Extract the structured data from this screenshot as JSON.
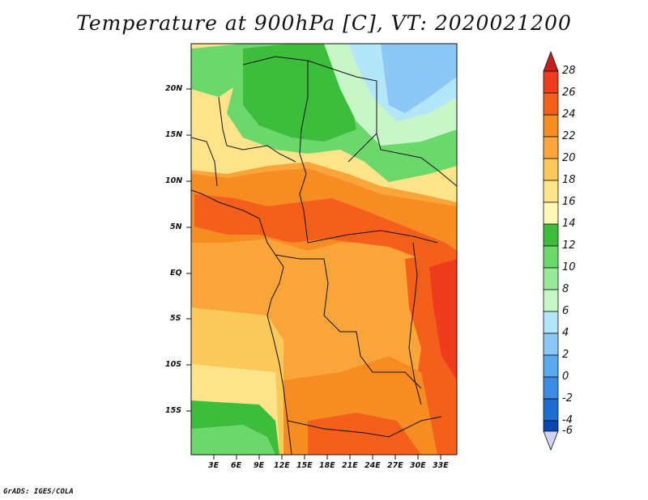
{
  "title": "Temperature at 900hPa [C], VT: 2020021200",
  "footer": "GrADS: IGES/COLA",
  "map": {
    "lat_labels": [
      "20N",
      "15N",
      "10N",
      "5N",
      "EQ",
      "5S",
      "10S",
      "15S"
    ],
    "lon_labels": [
      "3E",
      "6E",
      "9E",
      "12E",
      "15E",
      "18E",
      "21E",
      "24E",
      "27E",
      "30E",
      "33E"
    ]
  },
  "colorbar": {
    "labels": [
      "28",
      "26",
      "24",
      "22",
      "20",
      "18",
      "16",
      "14",
      "12",
      "10",
      "8",
      "6",
      "4",
      "2",
      "0",
      "-2",
      "-4",
      "-6"
    ],
    "colors": [
      "#f03c1e",
      "#f4601c",
      "#f78c22",
      "#f9a53a",
      "#fbc85a",
      "#fde48a",
      "#fdf8b5",
      "#3cbe3c",
      "#6cd86c",
      "#9ae89a",
      "#c8f6c8",
      "#b4e6fa",
      "#8cc8f6",
      "#5aaaf0",
      "#3c8ce6",
      "#1e6ed2",
      "#0a46b4",
      "#082070"
    ],
    "extend_top_color": "#c81e1e",
    "extend_bottom_color": "#d2d2f5"
  }
}
